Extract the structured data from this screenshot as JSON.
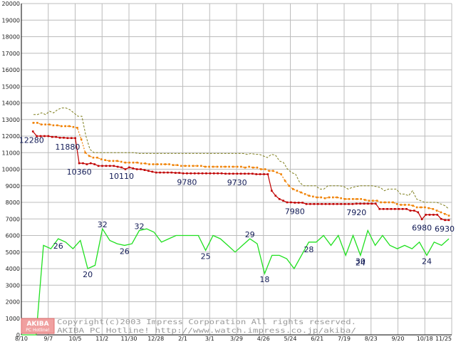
{
  "chart_data": {
    "type": "line",
    "title": "",
    "xlabel": "",
    "ylabel": "",
    "ylim": [
      0,
      20000
    ],
    "yticks": [
      0,
      1000,
      2000,
      3000,
      4000,
      5000,
      6000,
      7000,
      8000,
      9000,
      10000,
      11000,
      12000,
      13000,
      14000,
      15000,
      16000,
      17000,
      18000,
      19000,
      20000
    ],
    "xtick_labels": [
      "8/10",
      "9/7",
      "10/5",
      "11/2",
      "11/30",
      "12/28",
      "2/1",
      "3/1",
      "3/29",
      "4/26",
      "5/24",
      "6/21",
      "7/19",
      "8/23",
      "9/20",
      "10/18",
      "11/25"
    ],
    "grid": true,
    "legend": "none",
    "colors": {
      "max_price": "#808020",
      "avg_price": "#f08000",
      "min_price": "#c00000",
      "shops": "#20e020",
      "grid": "#bcbcbc",
      "label": "#111a55"
    },
    "series": [
      {
        "key": "max_price",
        "values": [
          null,
          null,
          null,
          13300,
          13300,
          13400,
          13300,
          13500,
          13400,
          13600,
          13700,
          13700,
          13600,
          13400,
          13200,
          13200,
          12000,
          11200,
          11000,
          11000,
          11000,
          11000,
          11000,
          11000,
          11000,
          11000,
          11000,
          11000,
          11000,
          10950,
          10950,
          10950,
          10950,
          10950,
          10950,
          10950,
          10950,
          10950,
          10950,
          10950,
          10950,
          10950,
          10950,
          10950,
          10950,
          10950,
          10950,
          10950,
          10950,
          10950,
          10950,
          10950,
          10950,
          10950,
          10950,
          10950,
          10900,
          10950,
          10900,
          10900,
          10800,
          10700,
          10900,
          10850,
          10500,
          10400,
          10000,
          9800,
          9700,
          9200,
          9000,
          9000,
          9000,
          9000,
          8800,
          8800,
          9000,
          9000,
          9000,
          9000,
          8950,
          8800,
          8900,
          8950,
          9000,
          9000,
          9000,
          9000,
          8950,
          8900,
          8700,
          8800,
          8800,
          8800,
          8500,
          8500,
          8400,
          8700,
          8200,
          8100,
          8000,
          8000,
          8000,
          8000,
          7900,
          7800,
          7600
        ]
      },
      {
        "key": "avg_price",
        "values": [
          null,
          null,
          null,
          12800,
          12800,
          12700,
          12700,
          12700,
          12650,
          12650,
          12600,
          12600,
          12600,
          12550,
          12500,
          11800,
          11000,
          10800,
          10700,
          10700,
          10600,
          10550,
          10500,
          10500,
          10500,
          10450,
          10400,
          10400,
          10400,
          10400,
          10350,
          10350,
          10300,
          10300,
          10300,
          10300,
          10300,
          10300,
          10250,
          10250,
          10200,
          10200,
          10200,
          10200,
          10200,
          10200,
          10150,
          10150,
          10150,
          10150,
          10150,
          10150,
          10150,
          10150,
          10150,
          10150,
          10100,
          10150,
          10100,
          10100,
          10000,
          10000,
          9900,
          9900,
          9800,
          9700,
          9300,
          9000,
          8800,
          8700,
          8600,
          8500,
          8400,
          8350,
          8300,
          8300,
          8250,
          8300,
          8300,
          8300,
          8250,
          8200,
          8200,
          8200,
          8200,
          8200,
          8150,
          8100,
          8100,
          8100,
          8000,
          8000,
          8000,
          8000,
          7900,
          7850,
          7850,
          7850,
          7800,
          7700,
          7700,
          7700,
          7650,
          7600,
          7500,
          7400,
          7300,
          7200
        ]
      },
      {
        "key": "min_price",
        "values": [
          null,
          null,
          null,
          12280,
          12000,
          12000,
          12000,
          12000,
          11950,
          11950,
          11900,
          11900,
          11880,
          11880,
          11880,
          10360,
          10360,
          10300,
          10360,
          10300,
          10200,
          10200,
          10200,
          10200,
          10200,
          10150,
          10110,
          10000,
          10110,
          10050,
          10000,
          10000,
          9950,
          9900,
          9850,
          9800,
          9800,
          9800,
          9800,
          9800,
          9780,
          9780,
          9750,
          9750,
          9750,
          9750,
          9750,
          9750,
          9750,
          9750,
          9750,
          9750,
          9750,
          9730,
          9730,
          9730,
          9730,
          9730,
          9730,
          9730,
          9730,
          9700,
          9700,
          9700,
          9700,
          8700,
          8400,
          8200,
          8100,
          8000,
          8000,
          7980,
          7980,
          7980,
          7900,
          7900,
          7900,
          7900,
          7900,
          7900,
          7900,
          7900,
          7900,
          7900,
          7900,
          7900,
          7900,
          7920,
          7920,
          7920,
          7920,
          7920,
          7920,
          7600,
          7600,
          7600,
          7600,
          7600,
          7600,
          7600,
          7600,
          7500,
          7500,
          7400,
          6980,
          7250,
          7250,
          7250,
          7250,
          7000,
          6930,
          6930
        ]
      },
      {
        "key": "shops",
        "values": [
          0,
          0,
          0,
          5400,
          5200,
          5800,
          5600,
          5200,
          5700,
          4000,
          4200,
          6400,
          5700,
          5500,
          5400,
          5500,
          6300,
          6400,
          6200,
          5600,
          5800,
          6000,
          6000,
          6000,
          6000,
          5100,
          6000,
          5800,
          5400,
          5000,
          5400,
          5800,
          5500,
          3700,
          4800,
          4800,
          4600,
          4000,
          4800,
          5600,
          5600,
          6000,
          5400,
          6000,
          4800,
          6000,
          4800,
          6300,
          5400,
          6000,
          5400,
          5200,
          5400,
          5200,
          5600,
          4800,
          5600,
          5400,
          5800
        ]
      }
    ],
    "data_labels": [
      {
        "series": "min_price",
        "text": "12280"
      },
      {
        "series": "min_price",
        "text": "11880"
      },
      {
        "series": "min_price",
        "text": "10360"
      },
      {
        "series": "min_price",
        "text": "10110"
      },
      {
        "series": "min_price",
        "text": "9780"
      },
      {
        "series": "min_price",
        "text": "9730"
      },
      {
        "series": "min_price",
        "text": "7980"
      },
      {
        "series": "min_price",
        "text": "7920"
      },
      {
        "series": "min_price",
        "text": "6980"
      },
      {
        "series": "min_price",
        "text": "6930"
      },
      {
        "series": "shops",
        "text": "26"
      },
      {
        "series": "shops",
        "text": "20"
      },
      {
        "series": "shops",
        "text": "32"
      },
      {
        "series": "shops",
        "text": "26"
      },
      {
        "series": "shops",
        "text": "32"
      },
      {
        "series": "shops",
        "text": "25"
      },
      {
        "series": "shops",
        "text": "29"
      },
      {
        "series": "shops",
        "text": "18"
      },
      {
        "series": "shops",
        "text": "28"
      },
      {
        "series": "shops",
        "text": "30"
      },
      {
        "series": "shops",
        "text": "24"
      },
      {
        "series": "shops",
        "text": "24"
      }
    ],
    "watermark": {
      "logo_top": "AKIBA",
      "logo_bottom": "PC Hotline!",
      "line1": "Copyright(c)2003 Impress Corporation All rights reserved.",
      "line2": "AKIBA PC Hotline!  http://www.watch.impress.co.jp/akiba/"
    }
  }
}
